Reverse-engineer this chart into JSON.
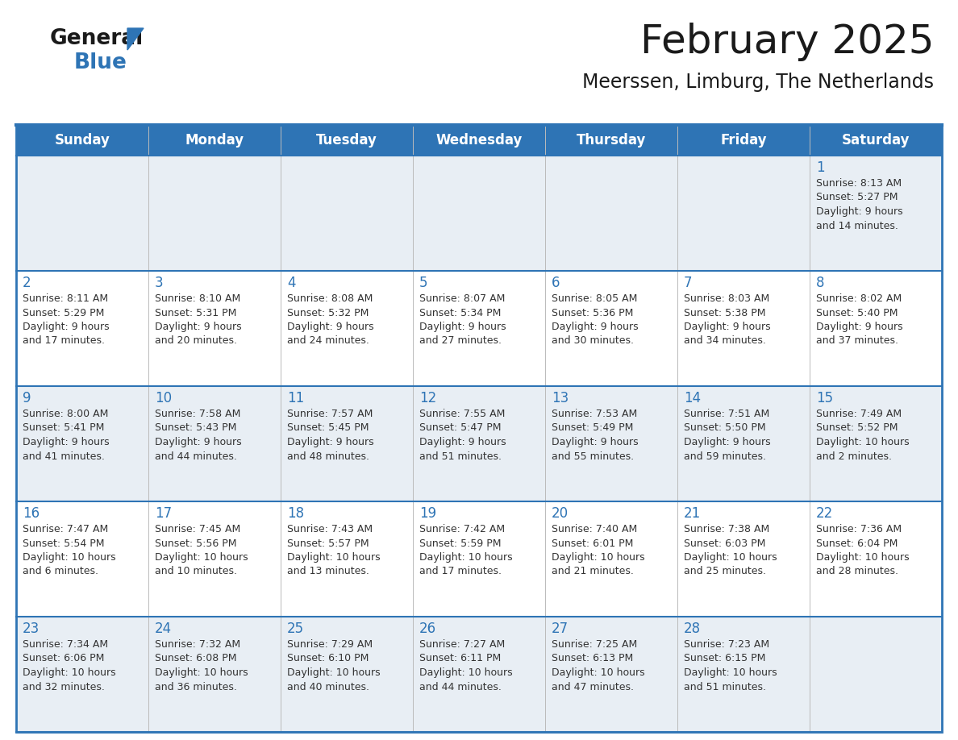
{
  "title": "February 2025",
  "subtitle": "Meerssen, Limburg, The Netherlands",
  "header_bg": "#2E74B5",
  "header_text_color": "#FFFFFF",
  "day_names": [
    "Sunday",
    "Monday",
    "Tuesday",
    "Wednesday",
    "Thursday",
    "Friday",
    "Saturday"
  ],
  "row_bg_odd": "#DDEEFF",
  "row_bg_even": "#FFFFFF",
  "row_bg_gray": "#E8EEF4",
  "title_color": "#1a1a1a",
  "subtitle_color": "#1a1a1a",
  "cell_text_color": "#333333",
  "day_number_color": "#2E74B5",
  "divider_color": "#2E74B5",
  "border_color": "#2E74B5",
  "calendar_data": [
    [
      {
        "day": "",
        "sunrise": "",
        "sunset": "",
        "daylight_h": "",
        "daylight_m": ""
      },
      {
        "day": "",
        "sunrise": "",
        "sunset": "",
        "daylight_h": "",
        "daylight_m": ""
      },
      {
        "day": "",
        "sunrise": "",
        "sunset": "",
        "daylight_h": "",
        "daylight_m": ""
      },
      {
        "day": "",
        "sunrise": "",
        "sunset": "",
        "daylight_h": "",
        "daylight_m": ""
      },
      {
        "day": "",
        "sunrise": "",
        "sunset": "",
        "daylight_h": "",
        "daylight_m": ""
      },
      {
        "day": "",
        "sunrise": "",
        "sunset": "",
        "daylight_h": "",
        "daylight_m": ""
      },
      {
        "day": "1",
        "sunrise": "8:13 AM",
        "sunset": "5:27 PM",
        "daylight_h": "9 hours",
        "daylight_m": "and 14 minutes."
      }
    ],
    [
      {
        "day": "2",
        "sunrise": "8:11 AM",
        "sunset": "5:29 PM",
        "daylight_h": "9 hours",
        "daylight_m": "and 17 minutes."
      },
      {
        "day": "3",
        "sunrise": "8:10 AM",
        "sunset": "5:31 PM",
        "daylight_h": "9 hours",
        "daylight_m": "and 20 minutes."
      },
      {
        "day": "4",
        "sunrise": "8:08 AM",
        "sunset": "5:32 PM",
        "daylight_h": "9 hours",
        "daylight_m": "and 24 minutes."
      },
      {
        "day": "5",
        "sunrise": "8:07 AM",
        "sunset": "5:34 PM",
        "daylight_h": "9 hours",
        "daylight_m": "and 27 minutes."
      },
      {
        "day": "6",
        "sunrise": "8:05 AM",
        "sunset": "5:36 PM",
        "daylight_h": "9 hours",
        "daylight_m": "and 30 minutes."
      },
      {
        "day": "7",
        "sunrise": "8:03 AM",
        "sunset": "5:38 PM",
        "daylight_h": "9 hours",
        "daylight_m": "and 34 minutes."
      },
      {
        "day": "8",
        "sunrise": "8:02 AM",
        "sunset": "5:40 PM",
        "daylight_h": "9 hours",
        "daylight_m": "and 37 minutes."
      }
    ],
    [
      {
        "day": "9",
        "sunrise": "8:00 AM",
        "sunset": "5:41 PM",
        "daylight_h": "9 hours",
        "daylight_m": "and 41 minutes."
      },
      {
        "day": "10",
        "sunrise": "7:58 AM",
        "sunset": "5:43 PM",
        "daylight_h": "9 hours",
        "daylight_m": "and 44 minutes."
      },
      {
        "day": "11",
        "sunrise": "7:57 AM",
        "sunset": "5:45 PM",
        "daylight_h": "9 hours",
        "daylight_m": "and 48 minutes."
      },
      {
        "day": "12",
        "sunrise": "7:55 AM",
        "sunset": "5:47 PM",
        "daylight_h": "9 hours",
        "daylight_m": "and 51 minutes."
      },
      {
        "day": "13",
        "sunrise": "7:53 AM",
        "sunset": "5:49 PM",
        "daylight_h": "9 hours",
        "daylight_m": "and 55 minutes."
      },
      {
        "day": "14",
        "sunrise": "7:51 AM",
        "sunset": "5:50 PM",
        "daylight_h": "9 hours",
        "daylight_m": "and 59 minutes."
      },
      {
        "day": "15",
        "sunrise": "7:49 AM",
        "sunset": "5:52 PM",
        "daylight_h": "10 hours",
        "daylight_m": "and 2 minutes."
      }
    ],
    [
      {
        "day": "16",
        "sunrise": "7:47 AM",
        "sunset": "5:54 PM",
        "daylight_h": "10 hours",
        "daylight_m": "and 6 minutes."
      },
      {
        "day": "17",
        "sunrise": "7:45 AM",
        "sunset": "5:56 PM",
        "daylight_h": "10 hours",
        "daylight_m": "and 10 minutes."
      },
      {
        "day": "18",
        "sunrise": "7:43 AM",
        "sunset": "5:57 PM",
        "daylight_h": "10 hours",
        "daylight_m": "and 13 minutes."
      },
      {
        "day": "19",
        "sunrise": "7:42 AM",
        "sunset": "5:59 PM",
        "daylight_h": "10 hours",
        "daylight_m": "and 17 minutes."
      },
      {
        "day": "20",
        "sunrise": "7:40 AM",
        "sunset": "6:01 PM",
        "daylight_h": "10 hours",
        "daylight_m": "and 21 minutes."
      },
      {
        "day": "21",
        "sunrise": "7:38 AM",
        "sunset": "6:03 PM",
        "daylight_h": "10 hours",
        "daylight_m": "and 25 minutes."
      },
      {
        "day": "22",
        "sunrise": "7:36 AM",
        "sunset": "6:04 PM",
        "daylight_h": "10 hours",
        "daylight_m": "and 28 minutes."
      }
    ],
    [
      {
        "day": "23",
        "sunrise": "7:34 AM",
        "sunset": "6:06 PM",
        "daylight_h": "10 hours",
        "daylight_m": "and 32 minutes."
      },
      {
        "day": "24",
        "sunrise": "7:32 AM",
        "sunset": "6:08 PM",
        "daylight_h": "10 hours",
        "daylight_m": "and 36 minutes."
      },
      {
        "day": "25",
        "sunrise": "7:29 AM",
        "sunset": "6:10 PM",
        "daylight_h": "10 hours",
        "daylight_m": "and 40 minutes."
      },
      {
        "day": "26",
        "sunrise": "7:27 AM",
        "sunset": "6:11 PM",
        "daylight_h": "10 hours",
        "daylight_m": "and 44 minutes."
      },
      {
        "day": "27",
        "sunrise": "7:25 AM",
        "sunset": "6:13 PM",
        "daylight_h": "10 hours",
        "daylight_m": "and 47 minutes."
      },
      {
        "day": "28",
        "sunrise": "7:23 AM",
        "sunset": "6:15 PM",
        "daylight_h": "10 hours",
        "daylight_m": "and 51 minutes."
      },
      {
        "day": "",
        "sunrise": "",
        "sunset": "",
        "daylight_h": "",
        "daylight_m": ""
      }
    ]
  ]
}
